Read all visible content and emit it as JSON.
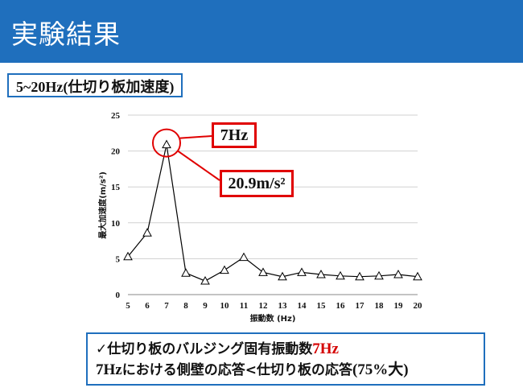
{
  "slide": {
    "title": "実験結果",
    "range_label": "5~20Hz(仕切り板加速度)"
  },
  "annotations": {
    "peak_freq": "7Hz",
    "peak_acc": "20.9m/s²"
  },
  "conclusion": {
    "line1_check": "✓",
    "line1_text": "仕切り板のバルジング固有振動数",
    "line1_value": "7Hz",
    "line2_lead": "7Hz",
    "line2_text": "における側壁の応答<仕切り板の応答",
    "line2_paren": "(75%大)"
  },
  "chart_data": {
    "type": "line",
    "x": [
      5,
      6,
      7,
      8,
      9,
      10,
      11,
      12,
      13,
      14,
      15,
      16,
      17,
      18,
      19,
      20
    ],
    "series": [
      {
        "values": [
          5.3,
          8.6,
          20.9,
          3.0,
          1.9,
          3.4,
          5.2,
          3.1,
          2.5,
          3.1,
          2.8,
          2.6,
          2.5,
          2.6,
          2.8,
          2.5
        ]
      }
    ],
    "xlabel": "振動数 (Hz)",
    "ylabel": "最大加速度(m/s²)",
    "xlim": [
      5,
      20
    ],
    "ylim": [
      0,
      25
    ],
    "yticks": [
      0,
      5,
      10,
      15,
      20,
      25
    ],
    "xticks": [
      5,
      6,
      7,
      8,
      9,
      10,
      11,
      12,
      13,
      14,
      15,
      16,
      17,
      18,
      19,
      20
    ],
    "grid": "horizontal",
    "marker": "open-triangle",
    "colors": {
      "line": "#000000",
      "grid": "#d0d0d0",
      "highlight": "#e00000"
    }
  }
}
